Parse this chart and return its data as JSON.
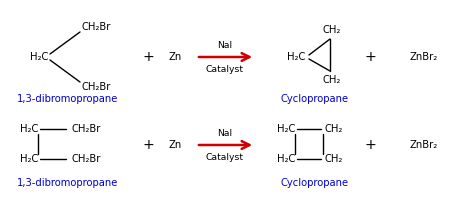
{
  "bg_color": "#ffffff",
  "black": "#000000",
  "blue": "#0000cd",
  "red": "#cc0000",
  "rxn1": {
    "reagent_label": "1,3-dibromopropane",
    "product_label": "Cyclopropane",
    "catalyst_top": "NaI",
    "catalyst_bot": "Catalyst",
    "zn": "Zn",
    "znbr2": "ZnBr₂"
  },
  "rxn2": {
    "reagent_label": "1,3-dibromopropane",
    "product_label": "Cyclopropane",
    "catalyst_top": "NaI",
    "catalyst_bot": "Catalyst",
    "zn": "Zn",
    "znbr2": "ZnBr₂"
  }
}
